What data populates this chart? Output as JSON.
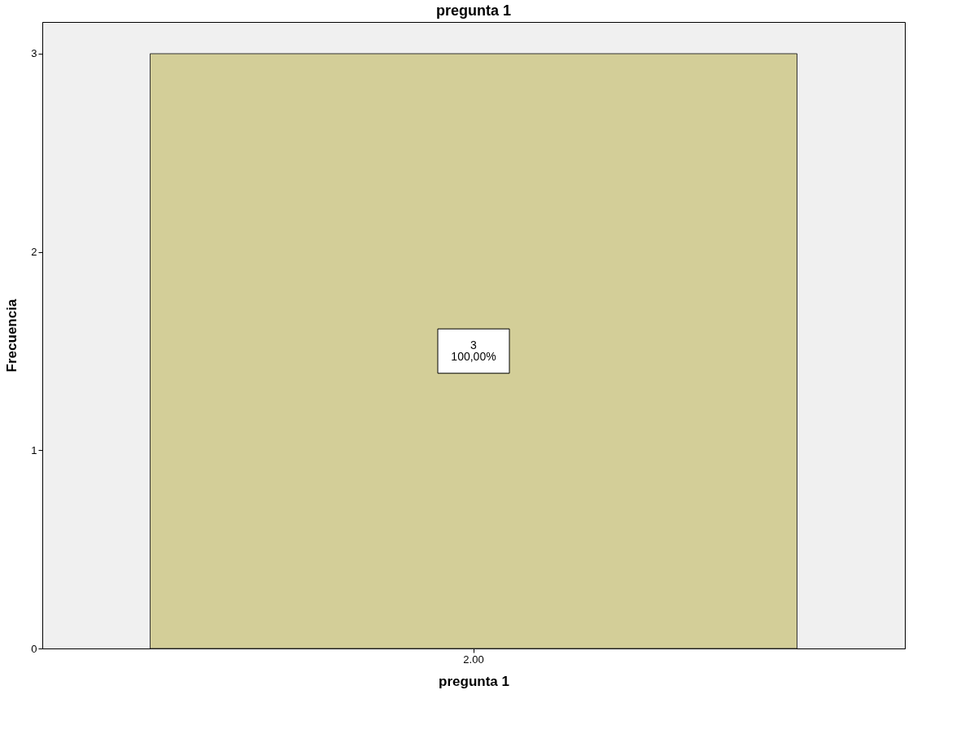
{
  "chart_data": {
    "type": "bar",
    "title": "pregunta 1",
    "xlabel": "pregunta 1",
    "ylabel": "Frecuencia",
    "categories": [
      "2.00"
    ],
    "values": [
      3
    ],
    "color": "#d3ce98",
    "data_labels": true,
    "annotations": [
      "100,00%"
    ],
    "ylim": [
      0,
      3.16
    ],
    "yticks": [
      0,
      1,
      2,
      3
    ],
    "grid": false
  }
}
